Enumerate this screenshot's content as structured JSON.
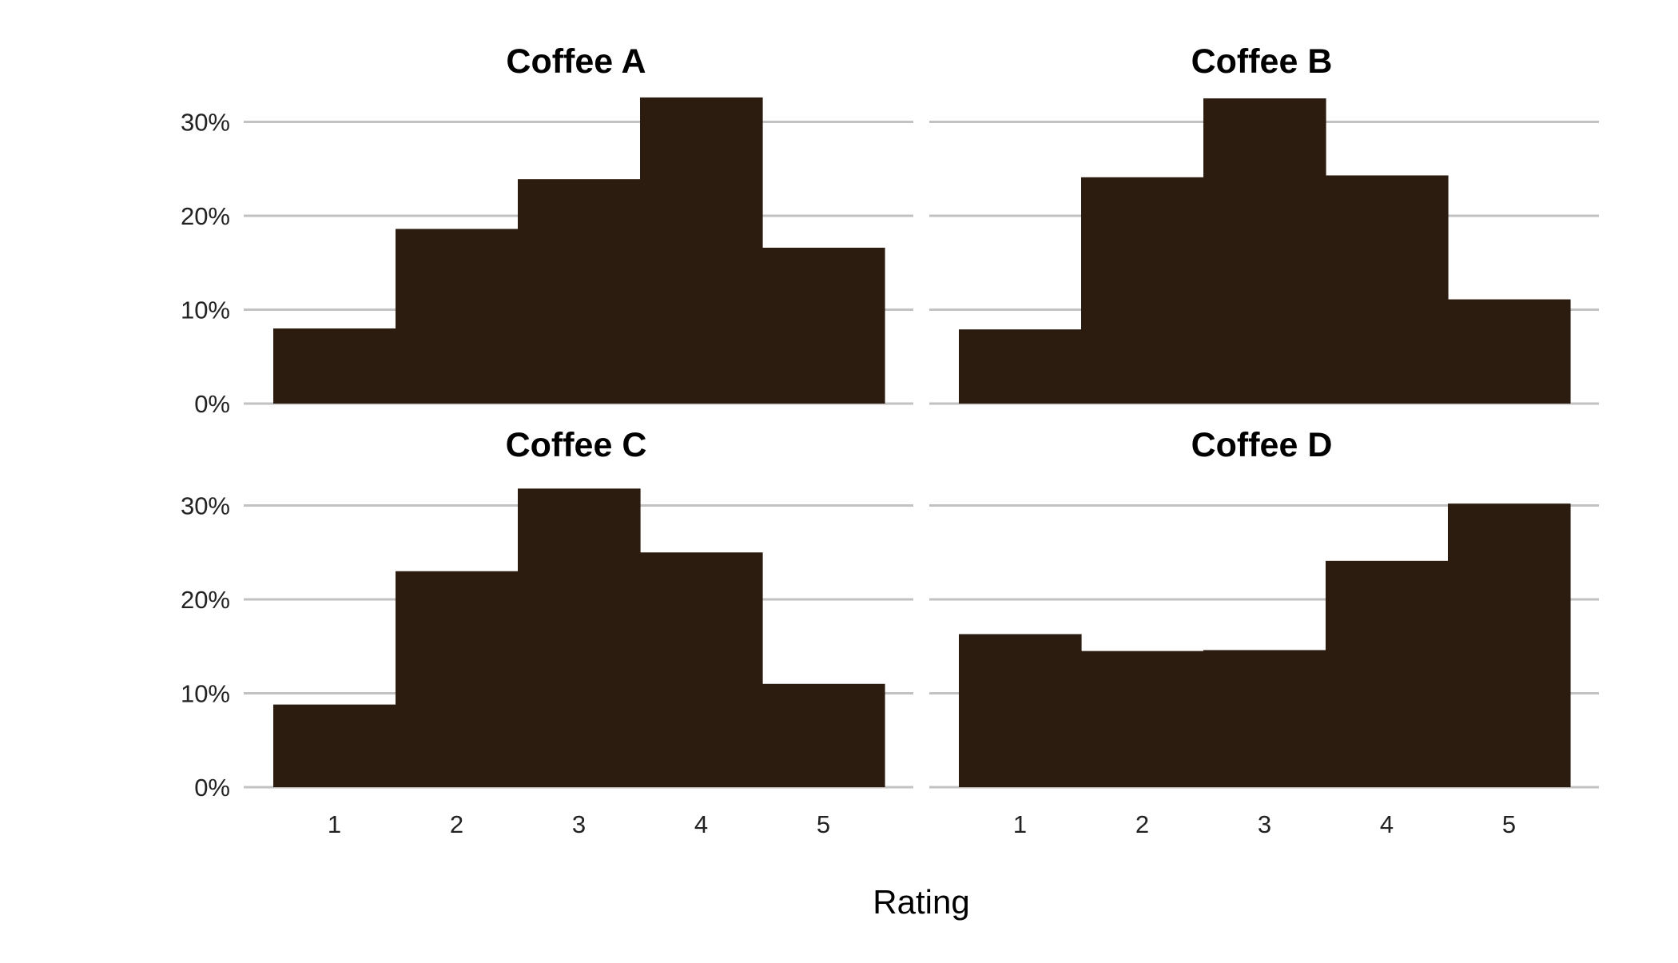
{
  "chart_data": {
    "type": "bar",
    "xlabel": "Rating",
    "ylabel": "",
    "categories": [
      "1",
      "2",
      "3",
      "4",
      "5"
    ],
    "y_ticks": [
      "0%",
      "10%",
      "20%",
      "30%"
    ],
    "ylim": [
      0,
      32.5
    ],
    "grid": true,
    "bar_color": "#2c1c10",
    "grid_color": "#c2c2c2",
    "facets": [
      {
        "title": "Coffee A",
        "values": [
          8.0,
          18.6,
          23.9,
          32.6,
          16.6
        ]
      },
      {
        "title": "Coffee B",
        "values": [
          7.9,
          24.1,
          32.5,
          24.3,
          11.1
        ]
      },
      {
        "title": "Coffee C",
        "values": [
          8.8,
          23.0,
          31.8,
          25.0,
          11.0
        ]
      },
      {
        "title": "Coffee D",
        "values": [
          16.3,
          14.5,
          14.6,
          24.1,
          30.2
        ]
      }
    ]
  }
}
